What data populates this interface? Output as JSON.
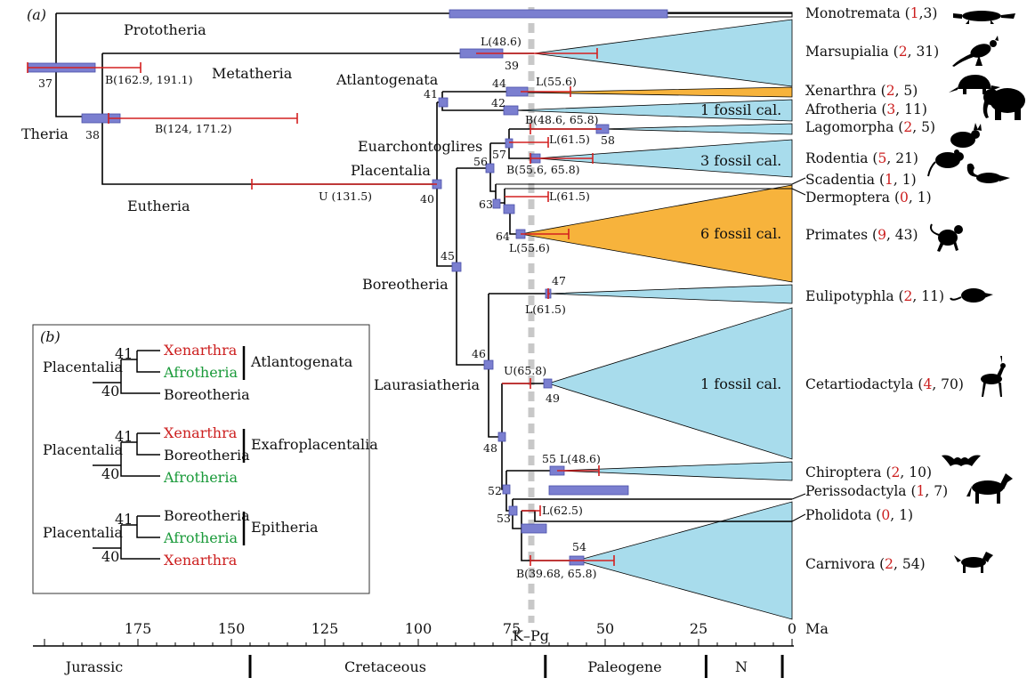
{
  "panel_a": "(a)",
  "panel_b": "(b)",
  "clades": {
    "prototheria": "Prototheria",
    "metatheria": "Metatheria",
    "theria": "Theria",
    "eutheria": "Eutheria",
    "atlantogenata": "Atlantogenata",
    "euarchontoglires": "Euarchontoglires",
    "placentalia": "Placentalia",
    "boreotheria": "Boreotheria",
    "laurasiatheria": "Laurasiatheria"
  },
  "nodes": {
    "n37": "37",
    "n38": "38",
    "n39": "39",
    "n40": "40",
    "n41": "41",
    "n42": "42",
    "n44": "44",
    "n45": "45",
    "n46": "46",
    "n47": "47",
    "n48": "48",
    "n49": "49",
    "n52": "52",
    "n53": "53",
    "n54": "54",
    "n55": "55",
    "n56": "56",
    "n57": "57",
    "n58": "58",
    "n63": "63",
    "n64": "64"
  },
  "calibrations": {
    "c37": "B(162.9, 191.1)",
    "c38": "B(124, 171.2)",
    "c40": "U (131.5)",
    "c39": "L(48.6)",
    "c44": "L(55.6)",
    "c42": "B(48.6, 65.8)",
    "c57l": "L(61.5)",
    "c57b": "B(55.6, 65.8)",
    "c63": "L(61.5)",
    "c64": "L(55.6)",
    "c47": "L(61.5)",
    "c49": "U(65.8)",
    "c55": "L(48.6)",
    "c53": "L(62.5)",
    "c54": "B(39.68, 65.8)"
  },
  "fossil_notes": {
    "afrotheria": "1 fossil cal.",
    "rodentia": "3 fossil cal.",
    "primates": "6 fossil cal.",
    "cetartiodactyla": "1 fossil cal."
  },
  "taxa": [
    {
      "name": "Monotremata",
      "a": "1",
      "sep": ",",
      "b": "3"
    },
    {
      "name": "Marsupialia",
      "a": "2",
      "sep": ", ",
      "b": "31"
    },
    {
      "name": "Xenarthra",
      "a": "2",
      "sep": ", ",
      "b": "5"
    },
    {
      "name": "Afrotheria",
      "a": "3",
      "sep": ", ",
      "b": "11"
    },
    {
      "name": "Lagomorpha",
      "a": "2",
      "sep": ", ",
      "b": "5"
    },
    {
      "name": "Rodentia",
      "a": "5",
      "sep": ", ",
      "b": "21"
    },
    {
      "name": "Scadentia",
      "a": "1",
      "sep": ", ",
      "b": "1"
    },
    {
      "name": "Dermoptera",
      "a": "0",
      "sep": ", ",
      "b": "1"
    },
    {
      "name": "Primates",
      "a": "9",
      "sep": ", ",
      "b": "43"
    },
    {
      "name": "Eulipotyphla",
      "a": "2",
      "sep": ", ",
      "b": "11"
    },
    {
      "name": "Cetartiodactyla",
      "a": "4",
      "sep": ", ",
      "b": "70"
    },
    {
      "name": "Chiroptera",
      "a": "2",
      "sep": ", ",
      "b": "10"
    },
    {
      "name": "Perissodactyla",
      "a": "1",
      "sep": ", ",
      "b": "7"
    },
    {
      "name": "Pholidota",
      "a": "0",
      "sep": ", ",
      "b": "1"
    },
    {
      "name": "Carnivora",
      "a": "2",
      "sep": ", ",
      "b": "54"
    }
  ],
  "axis": {
    "unit": "Ma",
    "ticks": [
      "175",
      "150",
      "125",
      "100",
      "75",
      "50",
      "25",
      "0"
    ],
    "kpg": "K–Pg",
    "periods": [
      "Jurassic",
      "Cretaceous",
      "Paleogene",
      "N"
    ]
  },
  "inset": {
    "hypotheses": [
      {
        "root": "Placentalia",
        "n41": "41",
        "n40": "40",
        "t1": "Xenarthra",
        "t2": "Afrotheria",
        "t3": "Boreotheria",
        "group": "Atlantogenata"
      },
      {
        "root": "Placentalia",
        "n41": "41",
        "n40": "40",
        "t1": "Xenarthra",
        "t2": "Boreotheria",
        "t3": "Afrotheria",
        "group": "Exafroplacentalia"
      },
      {
        "root": "Placentalia",
        "n41": "41",
        "n40": "40",
        "t1": "Boreotheria",
        "t2": "Afrotheria",
        "t3": "Xenarthra",
        "group": "Epitheria"
      }
    ]
  },
  "colors": {
    "ci_red": "#d42020",
    "hpd_blue": "#7b7fd0",
    "clade_blue": "#a8dcec",
    "clade_orange": "#f7b33c",
    "text_red": "#cc1f1f",
    "text_green": "#1a9a3a"
  },
  "icons": [
    "platypus-icon",
    "kangaroo-icon",
    "armadillo-icon",
    "elephant-icon",
    "rabbit-icon",
    "mouse-icon",
    "treeshrew-icon",
    "monkey-icon",
    "shrew-icon",
    "gazelle-icon",
    "bat-icon",
    "horse-icon",
    "dog-icon"
  ]
}
